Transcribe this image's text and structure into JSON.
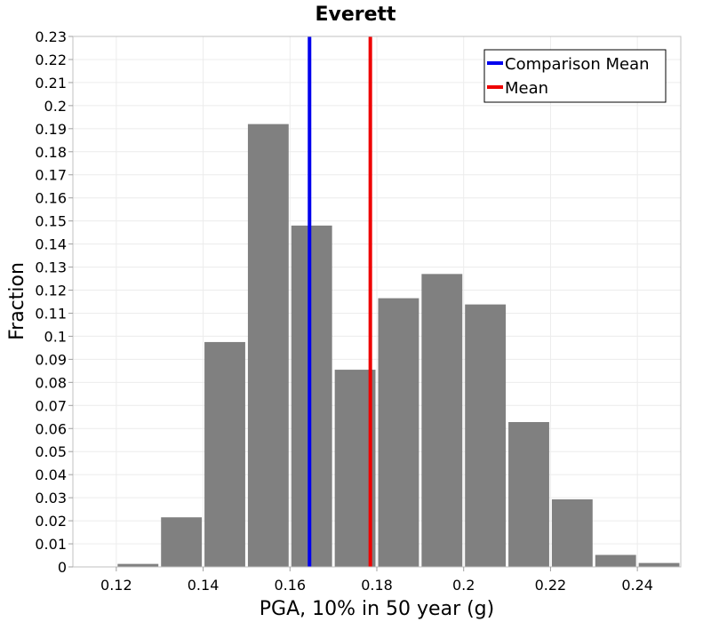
{
  "chart_data": {
    "type": "bar",
    "title": "Everett",
    "xlabel": "PGA, 10% in 50 year (g)",
    "ylabel": "Fraction",
    "xlim": [
      0.11,
      0.25
    ],
    "ylim": [
      0,
      0.23
    ],
    "x_ticks": [
      "0.12",
      "0.14",
      "0.16",
      "0.18",
      "0.2",
      "0.22",
      "0.24"
    ],
    "y_ticks": [
      "0",
      "0.01",
      "0.02",
      "0.03",
      "0.04",
      "0.05",
      "0.06",
      "0.07",
      "0.08",
      "0.09",
      "0.1",
      "0.11",
      "0.12",
      "0.13",
      "0.14",
      "0.15",
      "0.16",
      "0.17",
      "0.18",
      "0.19",
      "0.2",
      "0.21",
      "0.22",
      "0.23"
    ],
    "grid": true,
    "bin_width": 0.01,
    "bar_color": "#808080",
    "bins": [
      {
        "start": 0.12,
        "value": 0.0013
      },
      {
        "start": 0.13,
        "value": 0.0215
      },
      {
        "start": 0.14,
        "value": 0.0975
      },
      {
        "start": 0.15,
        "value": 0.192
      },
      {
        "start": 0.16,
        "value": 0.148
      },
      {
        "start": 0.17,
        "value": 0.0855
      },
      {
        "start": 0.18,
        "value": 0.1165
      },
      {
        "start": 0.19,
        "value": 0.127
      },
      {
        "start": 0.2,
        "value": 0.1138
      },
      {
        "start": 0.21,
        "value": 0.0628
      },
      {
        "start": 0.22,
        "value": 0.0293
      },
      {
        "start": 0.23,
        "value": 0.0052
      },
      {
        "start": 0.24,
        "value": 0.0017
      }
    ],
    "vlines": [
      {
        "name": "Comparison Mean",
        "x": 0.1645,
        "color": "#0000ee"
      },
      {
        "name": "Mean",
        "x": 0.1785,
        "color": "#ee0000"
      }
    ],
    "legend_position": "top-right"
  }
}
